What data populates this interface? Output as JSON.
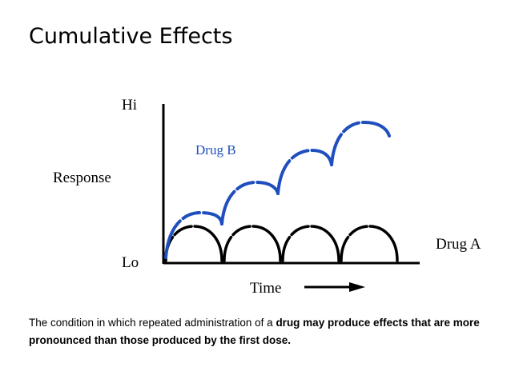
{
  "title": "Cumulative Effects",
  "axis": {
    "hi_label": "Hi",
    "lo_label": "Lo",
    "y_label": "Response",
    "x_label": "Time"
  },
  "series": {
    "drug_a": {
      "label": "Drug A",
      "color": "#000000"
    },
    "drug_b": {
      "label": "Drug B",
      "color": "#1f4fbf"
    }
  },
  "caption": {
    "plain": "The condition in which repeated administration of a ",
    "bold": "drug may produce effects that are more pronounced than those produced by the first dose."
  }
}
